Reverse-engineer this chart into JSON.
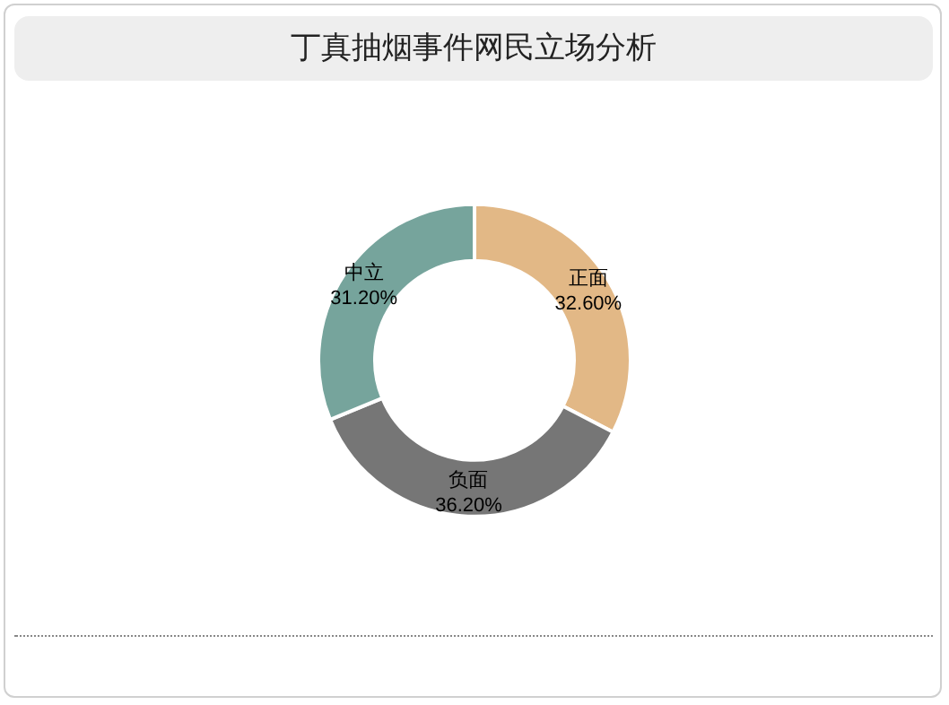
{
  "chart_data": {
    "type": "donut",
    "title": "丁真抽烟事件网民立场分析",
    "categories": [
      "正面",
      "负面",
      "中立"
    ],
    "values": [
      32.6,
      36.2,
      31.2
    ],
    "colors": [
      "#e2b886",
      "#767676",
      "#76a49c"
    ],
    "value_labels": [
      "32.60%",
      "36.20%",
      "31.20%"
    ],
    "legend": false
  }
}
